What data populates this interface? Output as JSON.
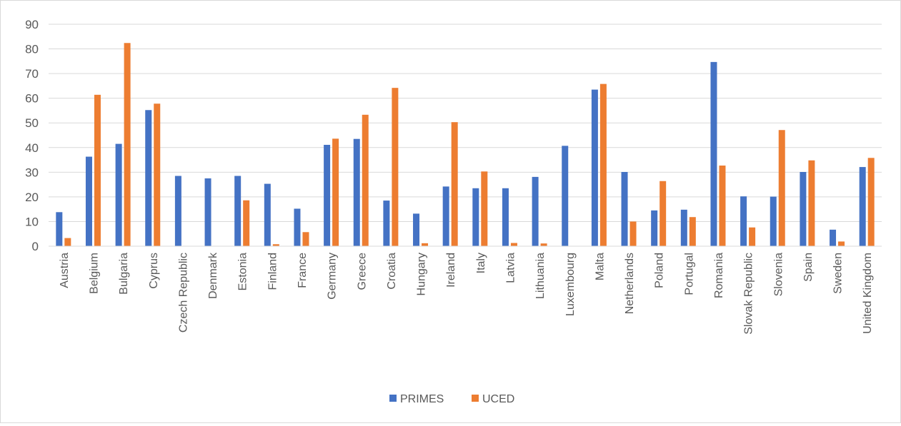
{
  "chart_data": {
    "type": "bar",
    "categories": [
      "Austria",
      "Belgium",
      "Bulgaria",
      "Cyprus",
      "Czech Republic",
      "Denmark",
      "Estonia",
      "Finland",
      "France",
      "Germany",
      "Greece",
      "Croatia",
      "Hungary",
      "Ireland",
      "Italy",
      "Latvia",
      "Lithuania",
      "Luxembourg",
      "Malta",
      "Netherlands",
      "Poland",
      "Portugal",
      "Romania",
      "Slovak Republic",
      "Slovenia",
      "Spain",
      "Sweden",
      "United Kingdom"
    ],
    "series": [
      {
        "name": "PRIMES",
        "color": "#4472c4",
        "values": [
          13.8,
          36.3,
          41.5,
          55.2,
          28.5,
          27.5,
          28.5,
          25.3,
          15.2,
          41.1,
          43.5,
          18.5,
          13.2,
          24.2,
          23.5,
          23.5,
          28.1,
          40.7,
          63.5,
          30.1,
          14.5,
          14.8,
          74.7,
          20.2,
          20.1,
          30.1,
          6.7,
          32.1
        ]
      },
      {
        "name": "UCED",
        "color": "#ed7d31",
        "values": [
          3.3,
          61.4,
          82.4,
          57.8,
          0,
          0,
          18.6,
          0.8,
          5.7,
          43.6,
          53.3,
          64.2,
          1.2,
          50.3,
          30.3,
          1.3,
          1.1,
          0,
          65.8,
          10.0,
          26.4,
          11.8,
          32.7,
          7.6,
          47.1,
          34.8,
          1.9,
          35.8
        ]
      }
    ],
    "ylim": [
      0,
      90
    ],
    "yticks": [
      "0",
      "10",
      "20",
      "30",
      "40",
      "50",
      "60",
      "70",
      "80",
      "90"
    ],
    "grid": true,
    "legend_position": "bottom",
    "title": "",
    "xlabel": "",
    "ylabel": ""
  }
}
